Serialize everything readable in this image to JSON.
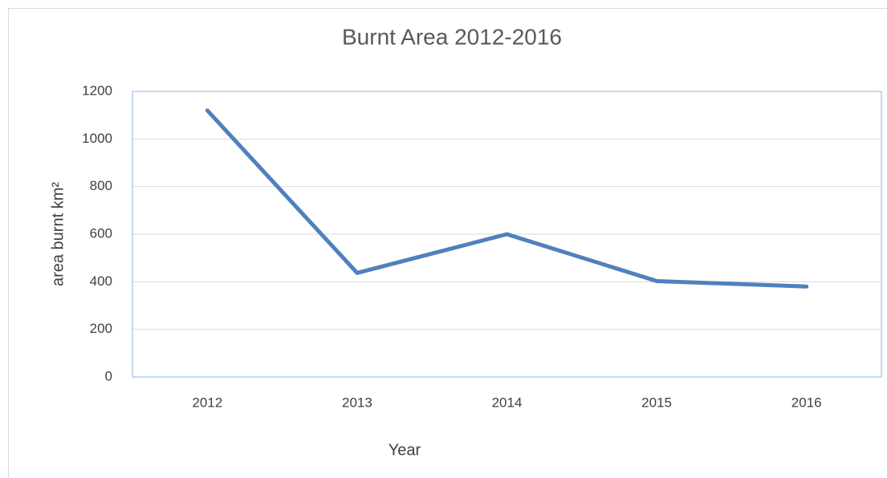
{
  "chart_data": {
    "type": "line",
    "title": "Burnt Area 2012-2016",
    "x_label": "Year",
    "y_label": "area burnt km²",
    "categories": [
      "2012",
      "2013",
      "2014",
      "2015",
      "2016"
    ],
    "series": [
      {
        "name": "area burnt km²",
        "color": "#4f81bd",
        "values": [
          1120,
          437,
          600,
          403,
          380
        ]
      }
    ],
    "ylim": [
      0,
      1200
    ],
    "yticks": [
      0,
      200,
      400,
      600,
      800,
      1000,
      1200
    ],
    "grid": true
  }
}
